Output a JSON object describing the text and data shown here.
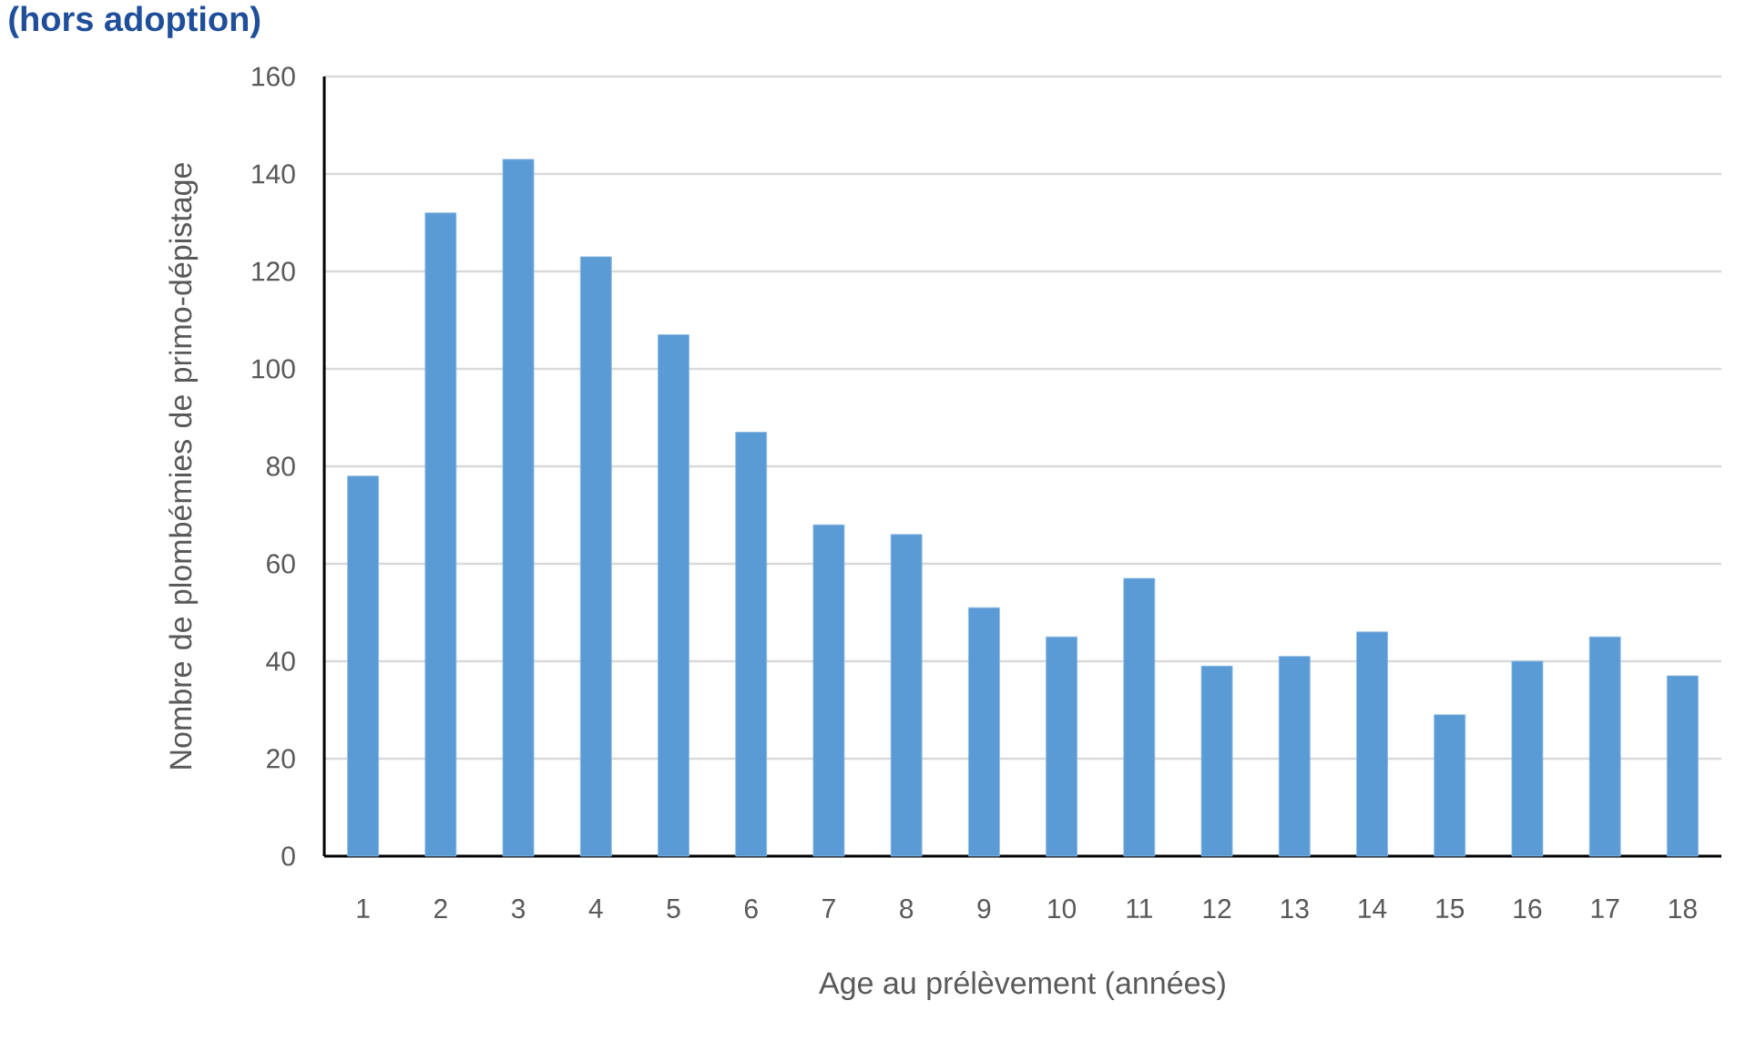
{
  "chart_data": {
    "type": "bar",
    "title": "(hors adoption)",
    "categories": [
      "1",
      "2",
      "3",
      "4",
      "5",
      "6",
      "7",
      "8",
      "9",
      "10",
      "11",
      "12",
      "13",
      "14",
      "15",
      "16",
      "17",
      "18"
    ],
    "values": [
      78,
      132,
      143,
      123,
      107,
      87,
      68,
      66,
      51,
      45,
      57,
      39,
      41,
      46,
      29,
      40,
      45,
      37
    ],
    "color": "#5b9bd5",
    "xlabel": "Age au prélèvement (années)",
    "ylabel": "Nombre de plombémies de primo-dépistage",
    "ylim": [
      0,
      160
    ],
    "yticks": [
      0,
      20,
      40,
      60,
      80,
      100,
      120,
      140,
      160
    ],
    "grid": "y"
  }
}
